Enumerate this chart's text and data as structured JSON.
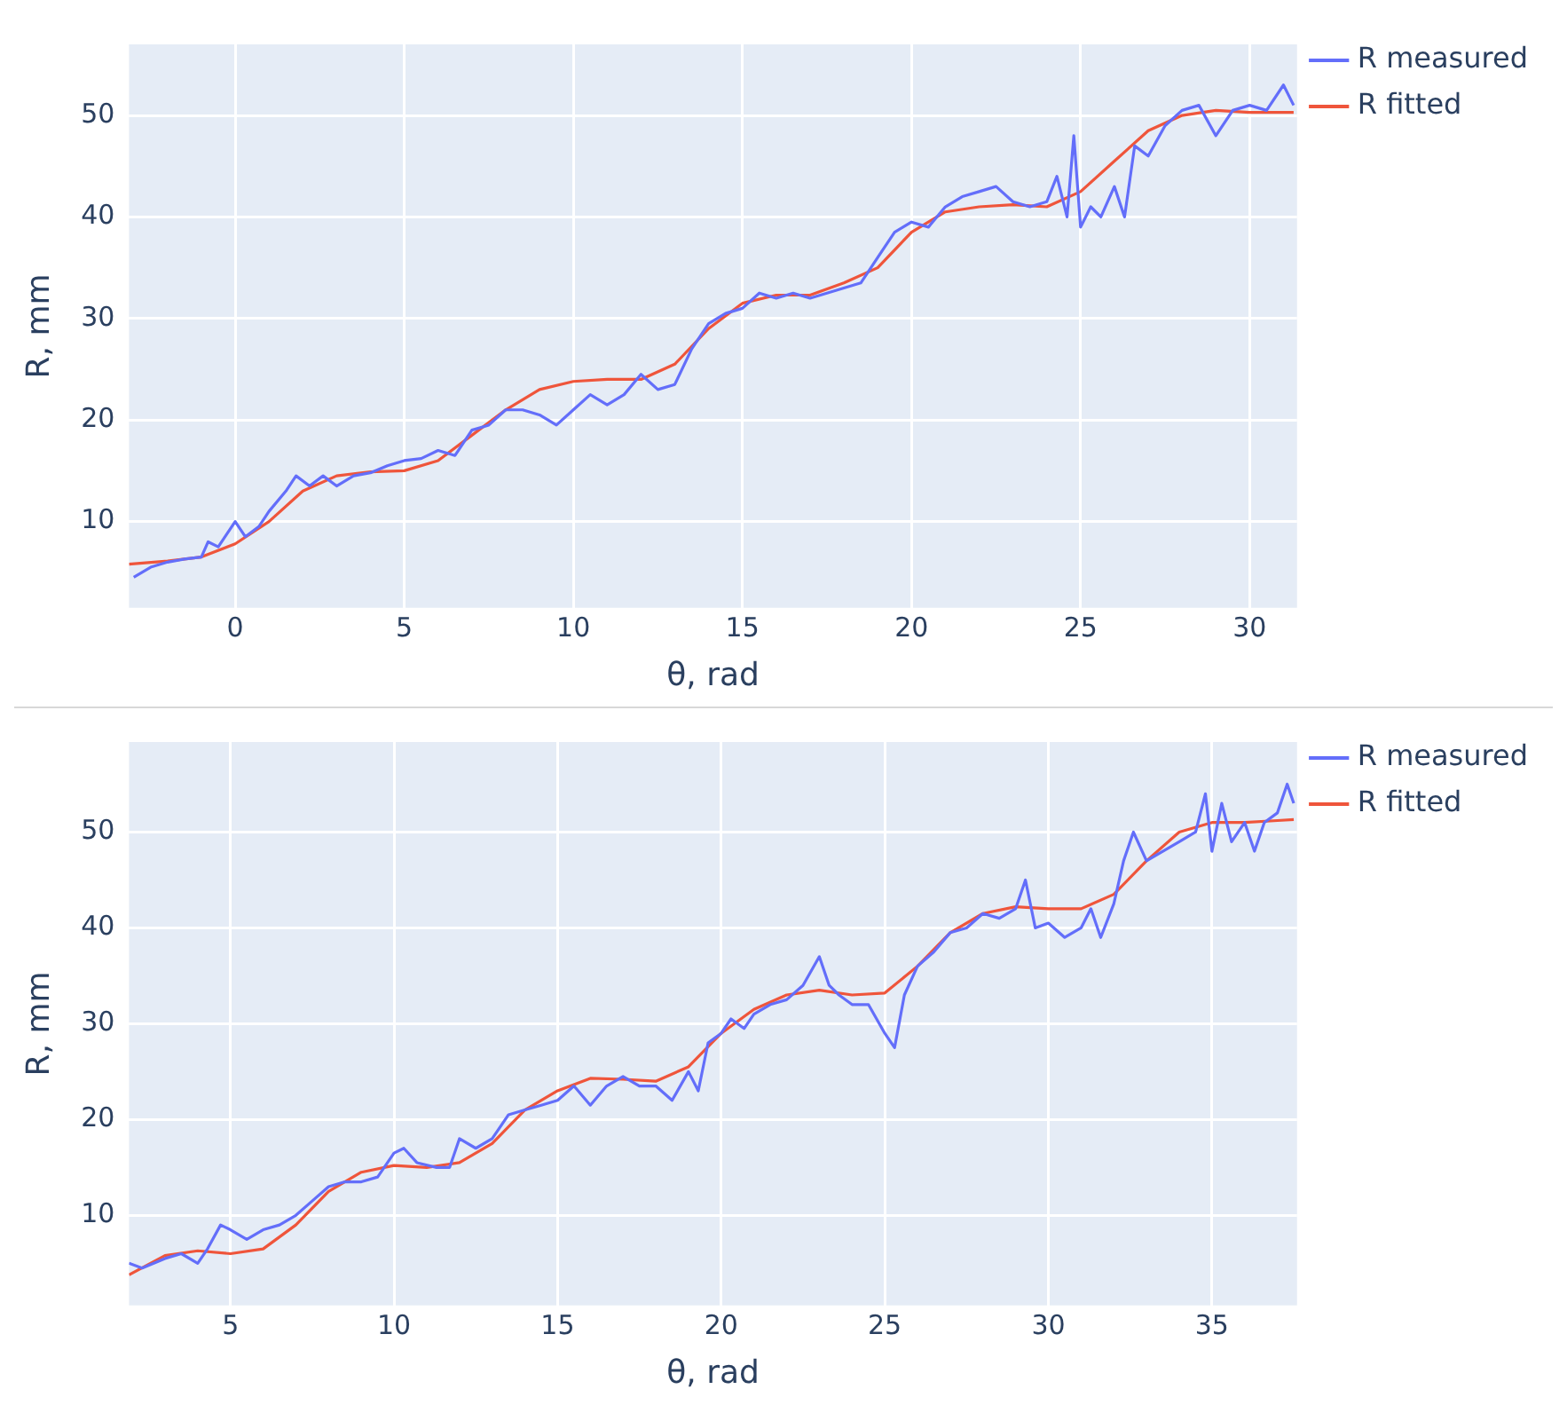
{
  "chart_data": [
    {
      "type": "line",
      "xlabel": "θ, rad",
      "ylabel": "R, mm",
      "xlim": [
        -3.14,
        31.4
      ],
      "ylim": [
        1.5,
        57
      ],
      "xticks": [
        0,
        5,
        10,
        15,
        20,
        25,
        30
      ],
      "yticks": [
        10,
        20,
        30,
        40,
        50
      ],
      "grid": true,
      "legend": "top right",
      "marker": "none",
      "line_style": "solid",
      "series": [
        {
          "name": "R measured",
          "color": "#636efa",
          "x": [
            -3,
            -2.5,
            -2,
            -1.5,
            -1,
            -0.8,
            -0.5,
            0,
            0.3,
            0.7,
            1,
            1.5,
            1.8,
            2.2,
            2.6,
            3,
            3.5,
            4,
            4.5,
            5,
            5.5,
            6,
            6.5,
            7,
            7.5,
            8,
            8.5,
            9,
            9.5,
            10,
            10.5,
            11,
            11.5,
            12,
            12.5,
            13,
            13.5,
            14,
            14.5,
            15,
            15.5,
            16,
            16.5,
            17,
            17.5,
            18,
            18.5,
            19,
            19.5,
            20,
            20.5,
            21,
            21.5,
            22,
            22.5,
            23,
            23.5,
            24,
            24.3,
            24.6,
            24.8,
            25,
            25.3,
            25.6,
            26,
            26.3,
            26.6,
            27,
            27.5,
            28,
            28.5,
            29,
            29.5,
            30,
            30.5,
            31,
            31.3
          ],
          "values": [
            4.5,
            5.5,
            6,
            6.3,
            6.5,
            8,
            7.5,
            10,
            8.5,
            9.5,
            11,
            13,
            14.5,
            13.5,
            14.5,
            13.5,
            14.5,
            14.8,
            15.5,
            16,
            16.2,
            17,
            16.5,
            19,
            19.5,
            21,
            21,
            20.5,
            19.5,
            21,
            22.5,
            21.5,
            22.5,
            24.5,
            23,
            23.5,
            27,
            29.5,
            30.5,
            31,
            32.5,
            32,
            32.5,
            32,
            32.5,
            33,
            33.5,
            36,
            38.5,
            39.5,
            39,
            41,
            42,
            42.5,
            43,
            41.5,
            41,
            41.5,
            44,
            40,
            48,
            39,
            41,
            40,
            43,
            40,
            47,
            46,
            49,
            50.5,
            51,
            48,
            50.5,
            51,
            50.5,
            53,
            51
          ]
        },
        {
          "name": "R fitted",
          "color": "#ef553b",
          "x": [
            -3.14,
            -2,
            -1,
            0,
            1,
            2,
            3,
            4,
            5,
            6,
            7,
            8,
            9,
            10,
            11,
            12,
            13,
            14,
            15,
            16,
            17,
            18,
            19,
            20,
            21,
            22,
            23,
            24,
            25,
            26,
            27,
            28,
            29,
            30,
            31.3
          ],
          "values": [
            5.8,
            6.1,
            6.5,
            7.8,
            10,
            13,
            14.5,
            14.9,
            15,
            16,
            18.5,
            21,
            23,
            23.8,
            24,
            24,
            25.5,
            29,
            31.5,
            32.3,
            32.3,
            33.5,
            35,
            38.5,
            40.5,
            41,
            41.2,
            41,
            42.5,
            45.5,
            48.5,
            50,
            50.5,
            50.3,
            50.3
          ]
        }
      ]
    },
    {
      "type": "line",
      "xlabel": "θ, rad",
      "ylabel": "R, mm",
      "xlim": [
        1.9,
        37.6
      ],
      "ylim": [
        0.6,
        59.4
      ],
      "xticks": [
        5,
        10,
        15,
        20,
        25,
        30,
        35
      ],
      "yticks": [
        10,
        20,
        30,
        40,
        50
      ],
      "grid": true,
      "legend": "top right",
      "marker": "none",
      "line_style": "solid",
      "series": [
        {
          "name": "R measured",
          "color": "#636efa",
          "x": [
            1.9,
            2.3,
            3,
            3.5,
            4,
            4.3,
            4.7,
            5,
            5.5,
            6,
            6.5,
            7,
            7.5,
            8,
            8.5,
            9,
            9.5,
            10,
            10.3,
            10.7,
            11.3,
            11.7,
            12,
            12.5,
            13,
            13.5,
            14,
            14.5,
            15,
            15.5,
            16,
            16.5,
            17,
            17.5,
            18,
            18.5,
            19,
            19.3,
            19.6,
            20,
            20.3,
            20.7,
            21,
            21.5,
            22,
            22.5,
            23,
            23.3,
            23.6,
            24,
            24.5,
            25,
            25.3,
            25.6,
            26,
            26.5,
            27,
            27.5,
            28,
            28.5,
            29,
            29.3,
            29.6,
            30,
            30.5,
            31,
            31.3,
            31.6,
            32,
            32.3,
            32.6,
            33,
            33.5,
            34,
            34.5,
            34.8,
            35,
            35.3,
            35.6,
            36,
            36.3,
            36.6,
            37,
            37.3,
            37.5
          ],
          "values": [
            5,
            4.5,
            5.5,
            6,
            5,
            6.5,
            9,
            8.5,
            7.5,
            8.5,
            9,
            10,
            11.5,
            13,
            13.5,
            13.5,
            14,
            16.5,
            17,
            15.5,
            15,
            15,
            18,
            17,
            18,
            20.5,
            21,
            21.5,
            22,
            23.5,
            21.5,
            23.5,
            24.5,
            23.5,
            23.5,
            22,
            25,
            23,
            28,
            29,
            30.5,
            29.5,
            31,
            32,
            32.5,
            34,
            37,
            34,
            33,
            32,
            32,
            29,
            27.5,
            33,
            36,
            37.5,
            39.5,
            40,
            41.5,
            41,
            42,
            45,
            40,
            40.5,
            39,
            40,
            42,
            39,
            42.5,
            47,
            50,
            47,
            48,
            49,
            50,
            54,
            48,
            53,
            49,
            51,
            48,
            51,
            52,
            55,
            53
          ]
        },
        {
          "name": "R fitted",
          "color": "#ef553b",
          "x": [
            1.9,
            3,
            4,
            5,
            6,
            7,
            8,
            9,
            10,
            11,
            12,
            13,
            14,
            15,
            16,
            17,
            18,
            19,
            20,
            21,
            22,
            23,
            24,
            25,
            26,
            27,
            28,
            29,
            30,
            31,
            32,
            33,
            34,
            35,
            36,
            37,
            37.5
          ],
          "values": [
            3.8,
            5.8,
            6.3,
            6,
            6.5,
            9,
            12.5,
            14.5,
            15.2,
            15,
            15.5,
            17.5,
            21,
            23,
            24.3,
            24.2,
            24,
            25.5,
            29,
            31.5,
            33,
            33.5,
            33,
            33.2,
            36,
            39.5,
            41.5,
            42.2,
            42,
            42,
            43.5,
            47,
            50,
            51,
            51,
            51.2,
            51.3
          ]
        }
      ]
    }
  ]
}
